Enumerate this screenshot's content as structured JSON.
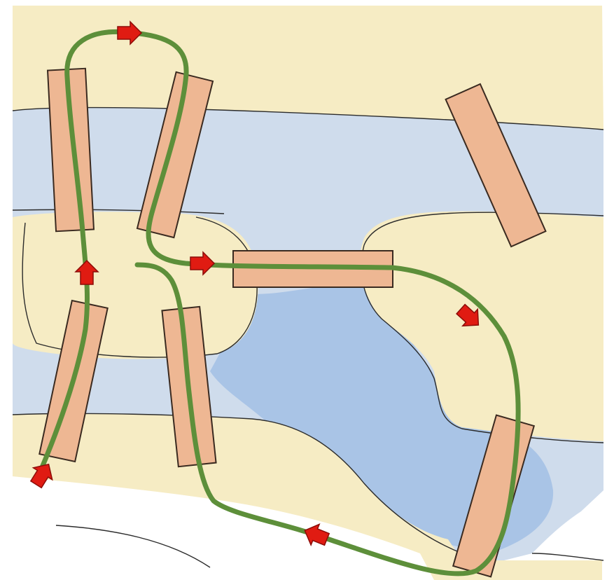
{
  "map": {
    "colors": {
      "land": "#f6ecc4",
      "water": "#c9d9ec",
      "water_deep": "#a9c4e6",
      "white_shore": "#ffffff",
      "bridge_fill": "#eeb793",
      "bridge_stroke": "#3a2a20",
      "path_stroke": "#5d8f3a",
      "arrow_fill": "#e01b12",
      "arrow_stroke": "#8c0c08",
      "coast_line": "#2b2b2b"
    },
    "landmasses": [
      {
        "name": "north-bank",
        "color_key": "land"
      },
      {
        "name": "central-island",
        "color_key": "land"
      },
      {
        "name": "east-island",
        "color_key": "land"
      },
      {
        "name": "south-bank",
        "color_key": "land"
      }
    ],
    "bridges": [
      {
        "name": "bridge-north-west"
      },
      {
        "name": "bridge-north-center"
      },
      {
        "name": "bridge-north-east"
      },
      {
        "name": "bridge-middle-east"
      },
      {
        "name": "bridge-south-west"
      },
      {
        "name": "bridge-south-center"
      },
      {
        "name": "bridge-south-east"
      }
    ],
    "route": {
      "name": "walking-route",
      "arrow_count": 6,
      "description_visible": false
    }
  }
}
